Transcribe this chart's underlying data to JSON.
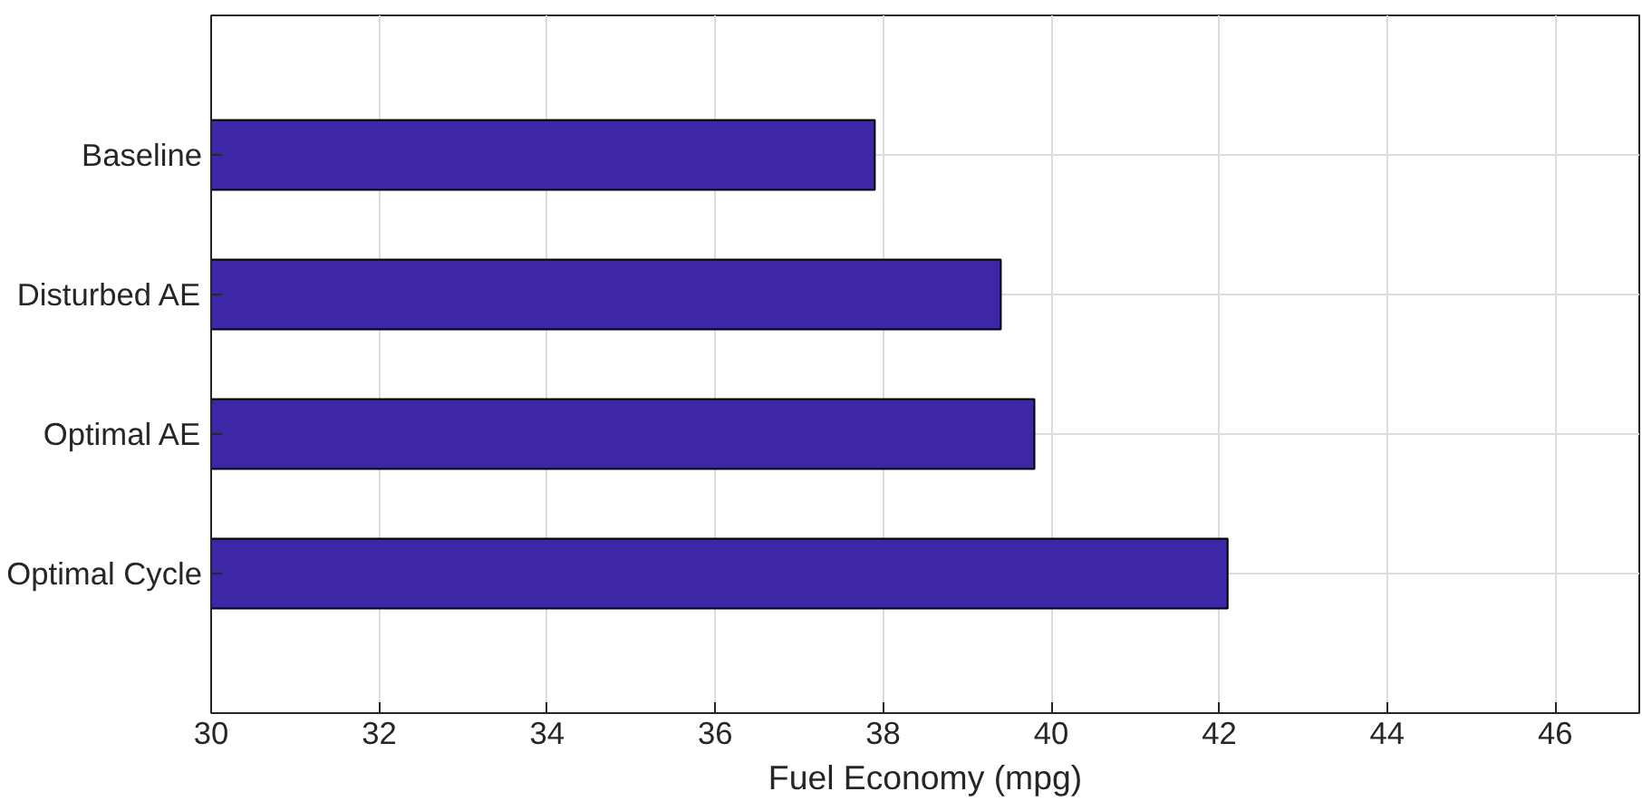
{
  "chart_data": {
    "type": "bar",
    "orientation": "horizontal",
    "xlabel": "Fuel Economy (mpg)",
    "categories": [
      "Baseline",
      "Disturbed AE",
      "Optimal AE",
      "Optimal Cycle"
    ],
    "values": [
      37.9,
      39.4,
      39.8,
      42.1
    ],
    "color": "#3d27a6",
    "xlim": [
      30,
      47
    ],
    "xticks": [
      30,
      32,
      34,
      36,
      38,
      40,
      42,
      44,
      46
    ],
    "grid": true
  }
}
